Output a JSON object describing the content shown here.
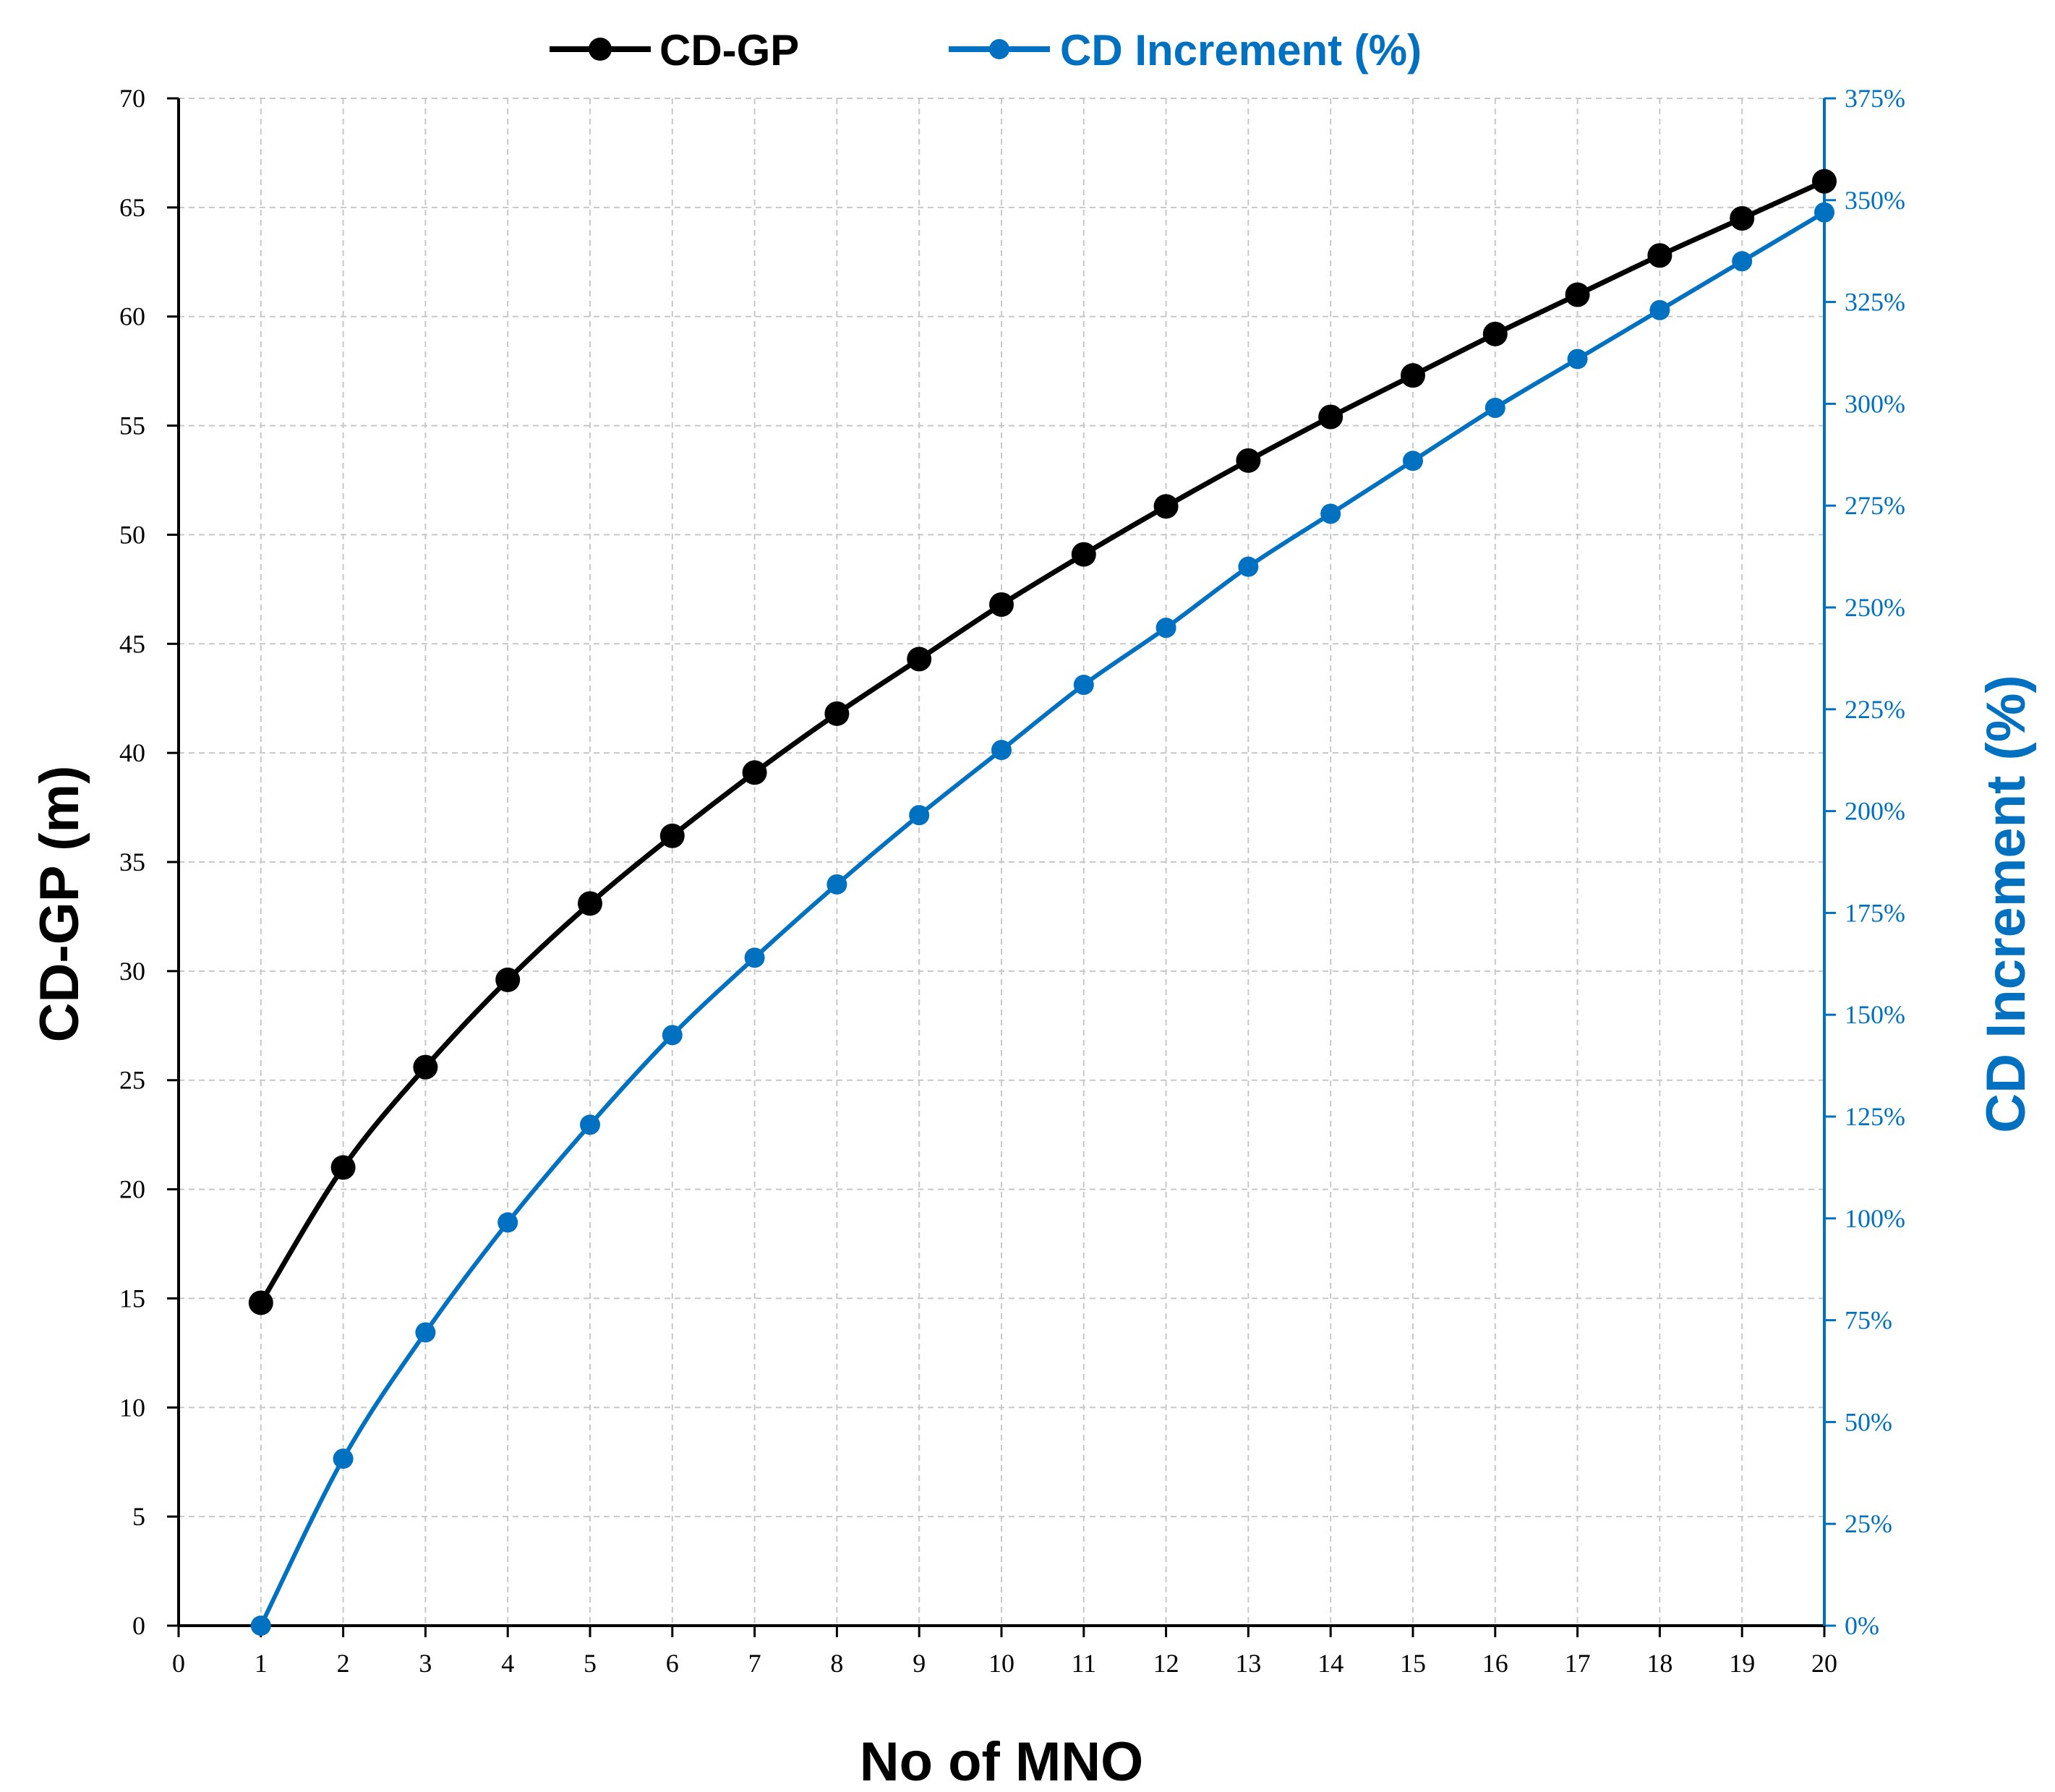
{
  "chart_data": {
    "type": "line",
    "xlabel": "No of MNO",
    "ylabel_left": "CD-GP (m)",
    "ylabel_right": "CD Increment (%)",
    "x_ticks": [
      "0",
      "1",
      "2",
      "3",
      "4",
      "5",
      "6",
      "7",
      "8",
      "9",
      "10",
      "11",
      "12",
      "13",
      "14",
      "15",
      "16",
      "17",
      "18",
      "19",
      "20"
    ],
    "y_left_ticks": [
      "0",
      "5",
      "10",
      "15",
      "20",
      "25",
      "30",
      "35",
      "40",
      "45",
      "50",
      "55",
      "60",
      "65",
      "70"
    ],
    "y_right_ticks": [
      "0%",
      "25%",
      "50%",
      "75%",
      "100%",
      "125%",
      "150%",
      "175%",
      "200%",
      "225%",
      "250%",
      "275%",
      "300%",
      "325%",
      "350%",
      "375%"
    ],
    "xlim": [
      0,
      20
    ],
    "ylim_left": [
      0,
      70
    ],
    "ylim_right": [
      0,
      375
    ],
    "grid": true,
    "legend_position": "top",
    "x": [
      1,
      2,
      3,
      4,
      5,
      6,
      7,
      8,
      9,
      10,
      11,
      12,
      13,
      14,
      15,
      16,
      17,
      18,
      19,
      20
    ],
    "series": [
      {
        "name": "CD-GP",
        "axis": "left",
        "color": "#000000",
        "values": [
          14.8,
          21.0,
          25.6,
          29.6,
          33.1,
          36.2,
          39.1,
          41.8,
          44.3,
          46.8,
          49.1,
          51.3,
          53.4,
          55.4,
          57.3,
          59.2,
          61.0,
          62.8,
          64.5,
          66.2
        ]
      },
      {
        "name": "CD Increment (%)",
        "axis": "right",
        "color": "#0070C0",
        "values": [
          0,
          41,
          72,
          99,
          123,
          145,
          164,
          182,
          199,
          215,
          231,
          245,
          260,
          273,
          286,
          299,
          311,
          323,
          335,
          347
        ]
      }
    ]
  }
}
